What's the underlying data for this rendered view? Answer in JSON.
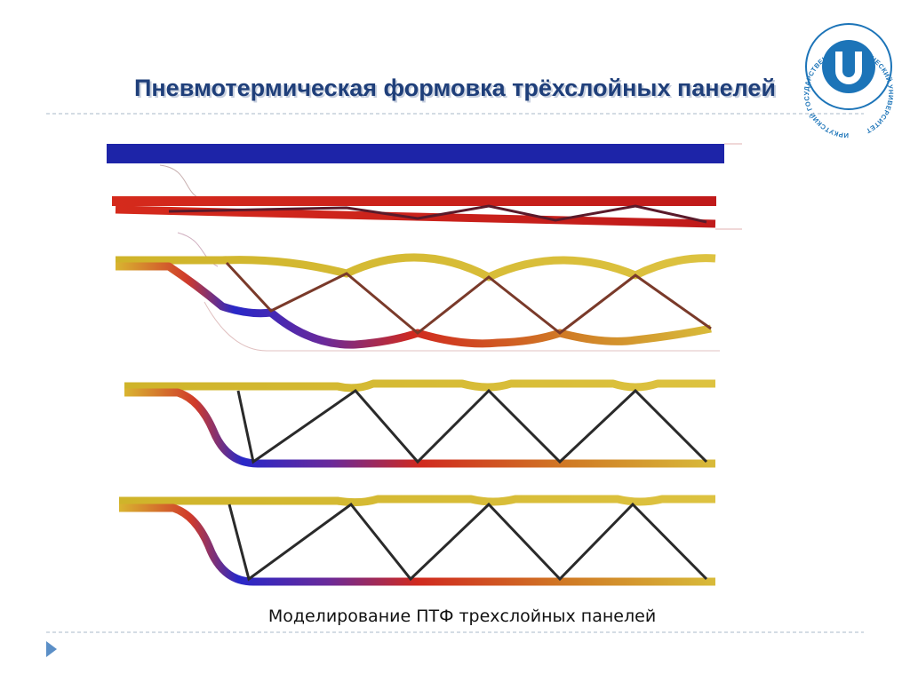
{
  "slide": {
    "title": "Пневмотермическая формовка трёхслойных панелей",
    "caption": "Моделирование ПТФ трехслойных панелей",
    "logo_text": "ИРКУТСКИЙ ГОСУДАРСТВЕННЫЙ ТЕХНИЧЕСКИЙ УНИВЕРСИТЕТ"
  }
}
